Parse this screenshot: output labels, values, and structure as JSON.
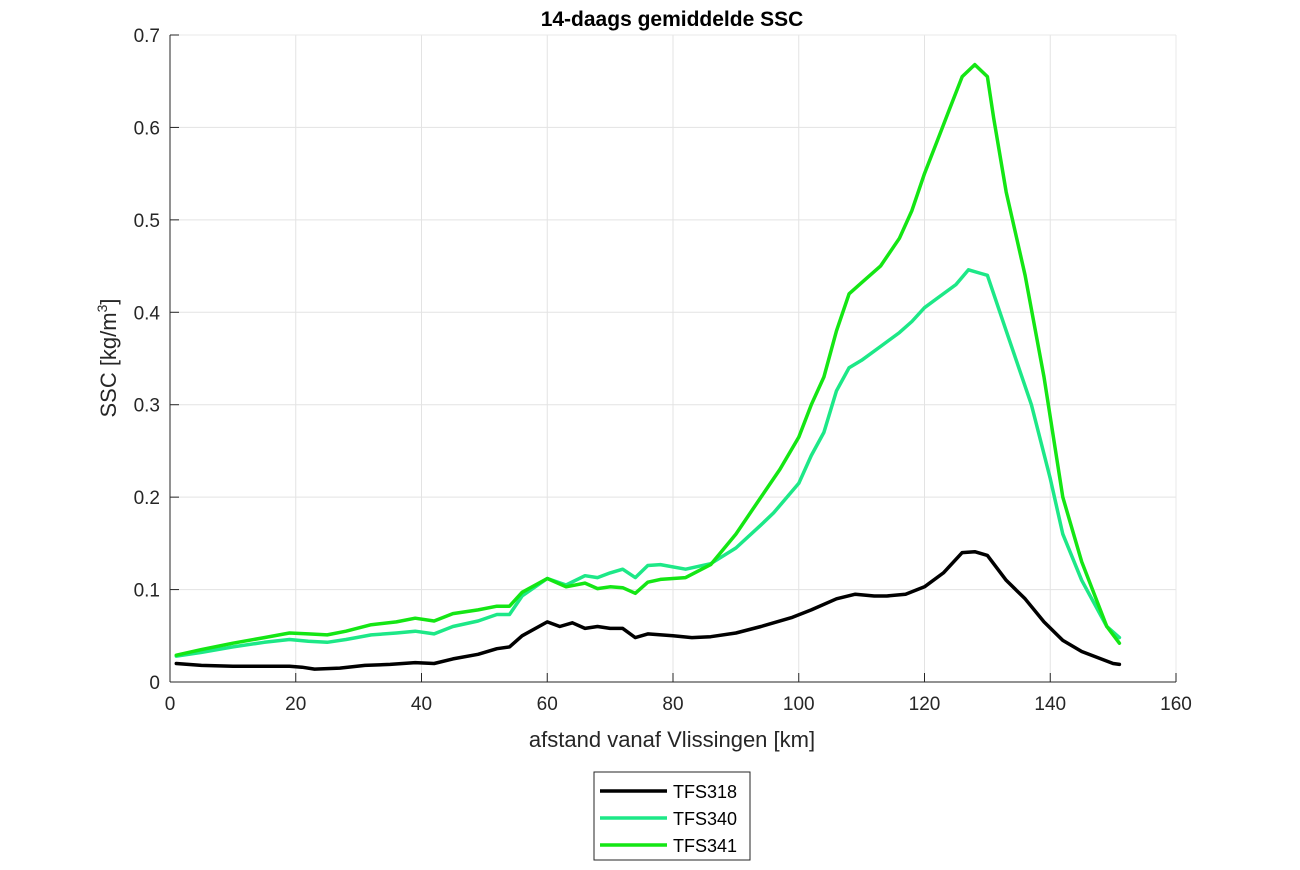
{
  "chart_data": {
    "type": "line",
    "title": "14-daags gemiddelde SSC",
    "xlabel": "afstand vanaf Vlissingen [km]",
    "ylabel_base": "SSC [kg/m",
    "ylabel_sup": "3",
    "ylabel_end": "]",
    "xlim": [
      0,
      160
    ],
    "ylim": [
      0,
      0.7
    ],
    "xticks": [
      0,
      20,
      40,
      60,
      80,
      100,
      120,
      140,
      160
    ],
    "xtick_labels": [
      "0",
      "20",
      "40",
      "60",
      "80",
      "100",
      "120",
      "140",
      "160"
    ],
    "yticks": [
      0,
      0.1,
      0.2,
      0.3,
      0.4,
      0.5,
      0.6,
      0.7
    ],
    "ytick_labels": [
      "0",
      "0.1",
      "0.2",
      "0.3",
      "0.4",
      "0.5",
      "0.6",
      "0.7"
    ],
    "grid": true,
    "legend_position": "bottom-center",
    "series": [
      {
        "name": "TFS318",
        "color": "#000000",
        "x": [
          1,
          5,
          10,
          15,
          19,
          21,
          23,
          27,
          31,
          35,
          39,
          42,
          45,
          49,
          52,
          54,
          56,
          60,
          62,
          64,
          66,
          68,
          70,
          72,
          74,
          76,
          80,
          83,
          86,
          90,
          94,
          99,
          102,
          106,
          109,
          112,
          114,
          117,
          120,
          123,
          126,
          128,
          130,
          133,
          136,
          139,
          142,
          145,
          150,
          151
        ],
        "y": [
          0.02,
          0.018,
          0.017,
          0.017,
          0.017,
          0.016,
          0.014,
          0.015,
          0.018,
          0.019,
          0.021,
          0.02,
          0.025,
          0.03,
          0.036,
          0.038,
          0.05,
          0.065,
          0.06,
          0.064,
          0.058,
          0.06,
          0.058,
          0.058,
          0.048,
          0.052,
          0.05,
          0.048,
          0.049,
          0.053,
          0.06,
          0.07,
          0.078,
          0.09,
          0.095,
          0.093,
          0.093,
          0.095,
          0.103,
          0.118,
          0.14,
          0.141,
          0.137,
          0.11,
          0.09,
          0.065,
          0.045,
          0.033,
          0.02,
          0.019
        ]
      },
      {
        "name": "TFS340",
        "color": "#1DE887",
        "x": [
          1,
          5,
          10,
          15,
          19,
          22,
          25,
          28,
          32,
          36,
          39,
          42,
          45,
          49,
          52,
          54,
          56,
          60,
          63,
          66,
          68,
          70,
          72,
          74,
          76,
          78,
          82,
          86,
          90,
          94,
          96,
          100,
          102,
          104,
          106,
          108,
          110,
          113,
          116,
          118,
          120,
          122,
          125,
          127,
          129,
          130,
          133,
          137,
          140,
          142,
          145,
          149,
          151
        ],
        "y": [
          0.028,
          0.032,
          0.038,
          0.043,
          0.046,
          0.044,
          0.043,
          0.046,
          0.051,
          0.053,
          0.055,
          0.052,
          0.06,
          0.066,
          0.073,
          0.073,
          0.093,
          0.112,
          0.105,
          0.115,
          0.113,
          0.118,
          0.122,
          0.113,
          0.126,
          0.127,
          0.122,
          0.128,
          0.145,
          0.17,
          0.183,
          0.215,
          0.245,
          0.27,
          0.315,
          0.34,
          0.348,
          0.363,
          0.378,
          0.39,
          0.405,
          0.415,
          0.43,
          0.446,
          0.442,
          0.44,
          0.38,
          0.3,
          0.22,
          0.16,
          0.11,
          0.06,
          0.048
        ]
      },
      {
        "name": "TFS341",
        "color": "#14E614",
        "x": [
          1,
          5,
          10,
          15,
          19,
          22,
          25,
          28,
          32,
          36,
          39,
          42,
          45,
          49,
          52,
          54,
          56,
          60,
          63,
          66,
          68,
          70,
          72,
          74,
          76,
          78,
          82,
          86,
          90,
          94,
          97,
          100,
          102,
          104,
          106,
          108,
          110,
          113,
          116,
          118,
          120,
          122,
          124,
          126,
          128,
          130,
          131,
          133,
          136,
          139,
          142,
          145,
          149,
          151
        ],
        "y": [
          0.029,
          0.035,
          0.042,
          0.048,
          0.053,
          0.052,
          0.051,
          0.055,
          0.062,
          0.065,
          0.069,
          0.066,
          0.074,
          0.078,
          0.082,
          0.082,
          0.097,
          0.112,
          0.103,
          0.107,
          0.101,
          0.103,
          0.102,
          0.096,
          0.108,
          0.111,
          0.113,
          0.127,
          0.16,
          0.2,
          0.23,
          0.265,
          0.3,
          0.33,
          0.38,
          0.42,
          0.432,
          0.45,
          0.48,
          0.51,
          0.55,
          0.585,
          0.62,
          0.655,
          0.668,
          0.655,
          0.61,
          0.53,
          0.44,
          0.33,
          0.2,
          0.13,
          0.06,
          0.042
        ]
      }
    ]
  }
}
